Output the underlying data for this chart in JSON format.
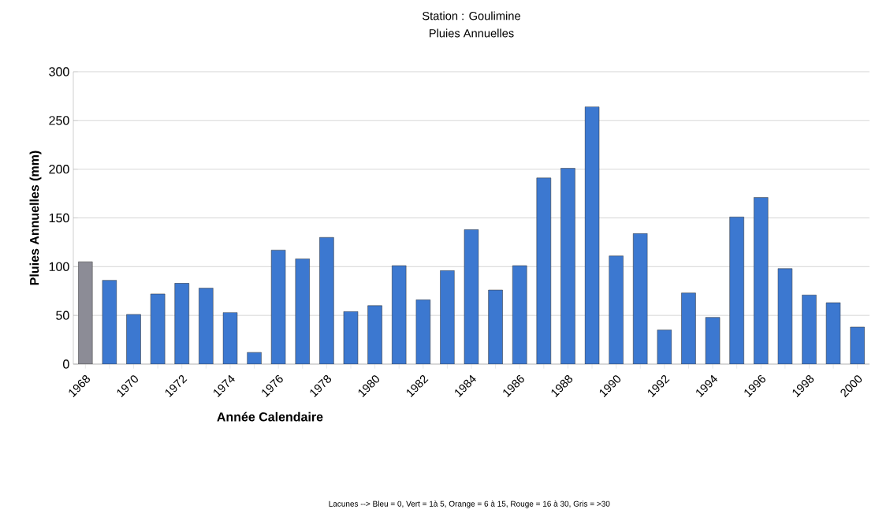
{
  "chart_data": {
    "type": "bar",
    "title": "Station : Goulimine",
    "subtitle": "Pluies Annuelles",
    "xlabel": "Année Calendaire",
    "ylabel": "Pluies Annuelles (mm)",
    "annotations": [
      "Lacunes --> Bleu = 0, Vert = 1à 5, Orange = 6 à 15, Rouge = 16 à 30, Gris = >30"
    ],
    "categories": [
      "1968",
      null,
      "1970",
      null,
      "1972",
      null,
      "1974",
      null,
      "1976",
      null,
      "1978",
      null,
      "1980",
      null,
      "1982",
      null,
      "1984",
      null,
      "1986",
      null,
      "1988",
      null,
      "1990",
      null,
      "1992",
      null,
      "1994",
      null,
      "1996",
      null,
      "1998",
      null,
      "2000"
    ],
    "values": [
      105,
      86,
      51,
      72,
      83,
      78,
      53,
      12,
      117,
      108,
      130,
      54,
      60,
      101,
      66,
      96,
      138,
      76,
      101,
      191,
      201,
      264,
      111,
      134,
      35,
      73,
      48,
      151,
      171,
      98,
      71,
      63,
      38
    ],
    "colors": [
      "#8c8c96",
      "#3c78d0",
      "#3c78d0",
      "#3c78d0",
      "#3c78d0",
      "#3c78d0",
      "#3c78d0",
      "#3c78d0",
      "#3c78d0",
      "#3c78d0",
      "#3c78d0",
      "#3c78d0",
      "#3c78d0",
      "#3c78d0",
      "#3c78d0",
      "#3c78d0",
      "#3c78d0",
      "#3c78d0",
      "#3c78d0",
      "#3c78d0",
      "#3c78d0",
      "#3c78d0",
      "#3c78d0",
      "#3c78d0",
      "#3c78d0",
      "#3c78d0",
      "#3c78d0",
      "#3c78d0",
      "#3c78d0",
      "#3c78d0",
      "#3c78d0",
      "#3c78d0",
      "#3c78d0"
    ],
    "ylim": [
      0,
      300
    ],
    "yticks": [
      0,
      50,
      100,
      150,
      200,
      250,
      300
    ],
    "grid": "y"
  }
}
